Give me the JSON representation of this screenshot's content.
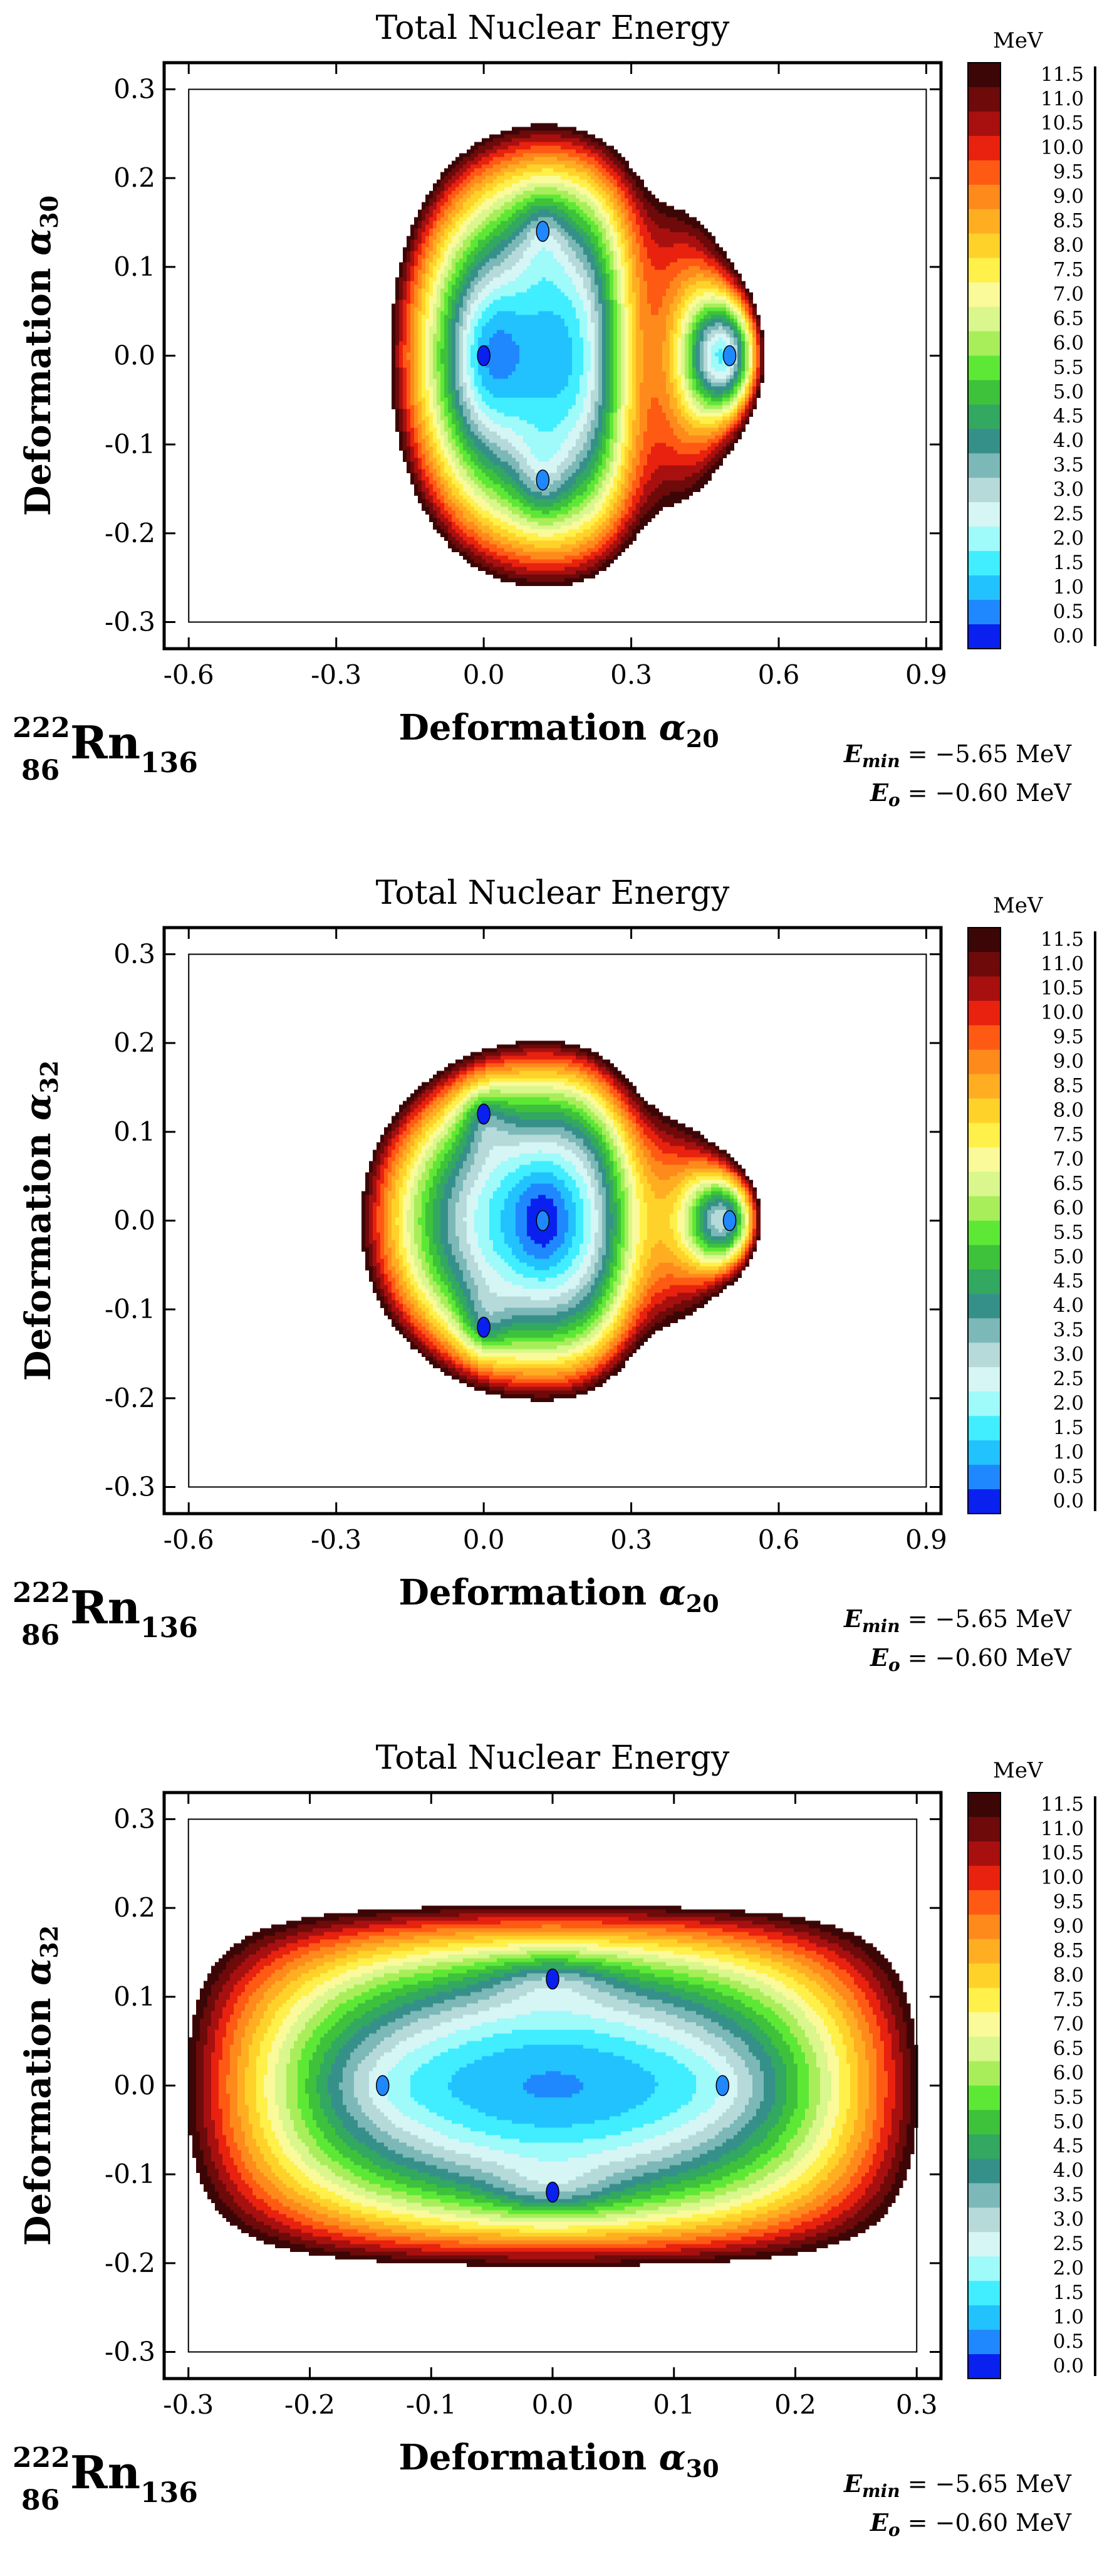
{
  "chart_data": [
    {
      "type": "contour",
      "title": "Total Nuclear Energy",
      "xlabel": "Deformation α20",
      "xlabel_main": "Deformation ",
      "xlabel_sym": "α",
      "xlabel_sub": "20",
      "ylabel_main": "Deformation ",
      "ylabel_sym": "α",
      "ylabel_sub": "30",
      "xlim": [
        -0.65,
        0.93
      ],
      "ylim": [
        -0.33,
        0.33
      ],
      "xticks": [
        "-0.6",
        "-0.3",
        "0.0",
        "0.3",
        "0.6",
        "0.9"
      ],
      "yticks": [
        "0.3",
        "0.2",
        "0.1",
        "0.0",
        "-0.1",
        "-0.2",
        "-0.3"
      ],
      "domain": {
        "x": [
          -0.6,
          0.9
        ],
        "y": [
          -0.3,
          0.3
        ]
      },
      "minima": [
        {
          "x": 0.0,
          "y": 0.0,
          "energy_mev": 0.0
        },
        {
          "x": 0.12,
          "y": 0.14,
          "energy_mev": 0.5
        },
        {
          "x": 0.12,
          "y": -0.14,
          "energy_mev": 0.5
        },
        {
          "x": 0.5,
          "y": 0.0,
          "energy_mev": 0.5
        }
      ],
      "nucleus": {
        "A": "222",
        "Z": "86",
        "symbol": "Rn",
        "N": "136"
      },
      "emin_label": "E",
      "emin_sub": "min",
      "emin_value": "= −5.65 MeV",
      "eo_label": "E",
      "eo_sub": "o",
      "eo_value": "= −0.60 MeV"
    },
    {
      "type": "contour",
      "title": "Total Nuclear Energy",
      "xlabel": "Deformation α20",
      "xlabel_main": "Deformation ",
      "xlabel_sym": "α",
      "xlabel_sub": "20",
      "ylabel_main": "Deformation ",
      "ylabel_sym": "α",
      "ylabel_sub": "32",
      "xlim": [
        -0.65,
        0.93
      ],
      "ylim": [
        -0.33,
        0.33
      ],
      "xticks": [
        "-0.6",
        "-0.3",
        "0.0",
        "0.3",
        "0.6",
        "0.9"
      ],
      "yticks": [
        "0.3",
        "0.2",
        "0.1",
        "0.0",
        "-0.1",
        "-0.2",
        "-0.3"
      ],
      "domain": {
        "x": [
          -0.6,
          0.9
        ],
        "y": [
          -0.3,
          0.3
        ]
      },
      "minima": [
        {
          "x": 0.0,
          "y": 0.12,
          "energy_mev": 0.0
        },
        {
          "x": 0.0,
          "y": -0.12,
          "energy_mev": 0.0
        },
        {
          "x": 0.12,
          "y": 0.0,
          "energy_mev": 0.5
        },
        {
          "x": 0.5,
          "y": 0.0,
          "energy_mev": 0.5
        }
      ],
      "nucleus": {
        "A": "222",
        "Z": "86",
        "symbol": "Rn",
        "N": "136"
      },
      "emin_label": "E",
      "emin_sub": "min",
      "emin_value": "= −5.65 MeV",
      "eo_label": "E",
      "eo_sub": "o",
      "eo_value": "= −0.60 MeV"
    },
    {
      "type": "contour",
      "title": "Total Nuclear Energy",
      "xlabel": "Deformation α30",
      "xlabel_main": "Deformation ",
      "xlabel_sym": "α",
      "xlabel_sub": "30",
      "ylabel_main": "Deformation ",
      "ylabel_sym": "α",
      "ylabel_sub": "32",
      "xlim": [
        -0.32,
        0.32
      ],
      "ylim": [
        -0.33,
        0.33
      ],
      "xticks": [
        "-0.3",
        "-0.2",
        "-0.1",
        "0.0",
        "0.1",
        "0.2",
        "0.3"
      ],
      "yticks": [
        "0.3",
        "0.2",
        "0.1",
        "0.0",
        "-0.1",
        "-0.2",
        "-0.3"
      ],
      "domain": {
        "x": [
          -0.3,
          0.3
        ],
        "y": [
          -0.3,
          0.3
        ]
      },
      "minima": [
        {
          "x": 0.0,
          "y": 0.12,
          "energy_mev": 0.0
        },
        {
          "x": 0.0,
          "y": -0.12,
          "energy_mev": 0.0
        },
        {
          "x": -0.14,
          "y": 0.0,
          "energy_mev": 0.5
        },
        {
          "x": 0.14,
          "y": 0.0,
          "energy_mev": 0.5
        }
      ],
      "nucleus": {
        "A": "222",
        "Z": "86",
        "symbol": "Rn",
        "N": "136"
      },
      "emin_label": "E",
      "emin_sub": "min",
      "emin_value": "= −5.65 MeV",
      "eo_label": "E",
      "eo_sub": "o",
      "eo_value": "= −0.60 MeV"
    }
  ],
  "colorbar": {
    "unit": "MeV",
    "levels": [
      "11.5",
      "11.0",
      "10.5",
      "10.0",
      "9.5",
      "9.0",
      "8.5",
      "8.0",
      "7.5",
      "7.0",
      "6.5",
      "6.0",
      "5.5",
      "5.0",
      "4.5",
      "4.0",
      "3.5",
      "3.0",
      "2.5",
      "2.0",
      "1.5",
      "1.0",
      "0.5",
      "0.0"
    ],
    "colors": [
      "#3d0606",
      "#6e0a0a",
      "#a81010",
      "#e8220e",
      "#ff5a14",
      "#ff8a1c",
      "#ffae22",
      "#ffd22a",
      "#fff04a",
      "#fafa9a",
      "#d9f78c",
      "#a8ee5a",
      "#5ee836",
      "#3ec23c",
      "#32a860",
      "#36908a",
      "#7cb8b8",
      "#b6dada",
      "#d6f5f5",
      "#9ffafa",
      "#40eeff",
      "#22c2ff",
      "#2088ff",
      "#0a20ee"
    ]
  }
}
